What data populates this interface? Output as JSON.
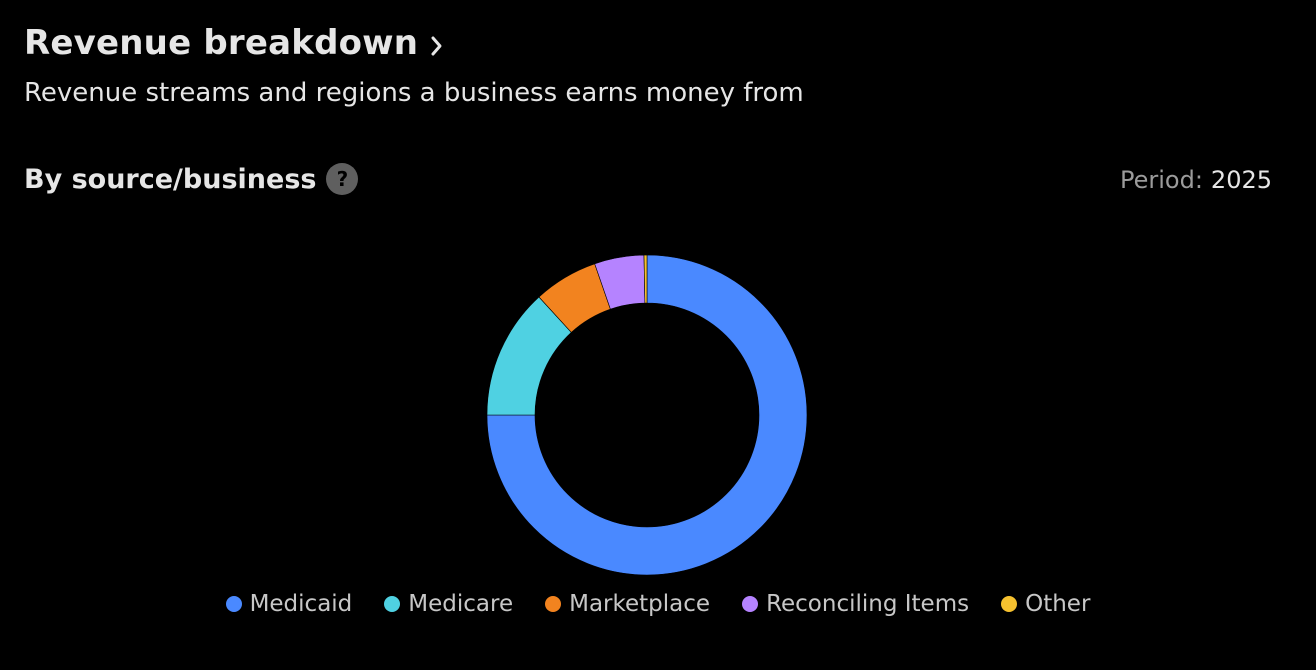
{
  "header": {
    "title": "Revenue breakdown",
    "subtitle": "Revenue streams and regions a business earns money from"
  },
  "section": {
    "title": "By source/business",
    "period_label": "Period:",
    "period_value": "2025"
  },
  "chart_data": {
    "type": "pie",
    "donut": true,
    "title": "",
    "categories": [
      "Medicaid",
      "Medicare",
      "Marketplace",
      "Reconciling Items",
      "Other"
    ],
    "values": [
      75.0,
      13.2,
      6.5,
      5.0,
      0.3
    ],
    "unit": "%",
    "colors": [
      "#4a89ff",
      "#4fd1e2",
      "#f2831f",
      "#b583ff",
      "#f6c12f"
    ],
    "legend_placement": "bottom-center"
  },
  "icons": {
    "title_chevron": "chevron-right-icon",
    "help": "help-icon"
  }
}
